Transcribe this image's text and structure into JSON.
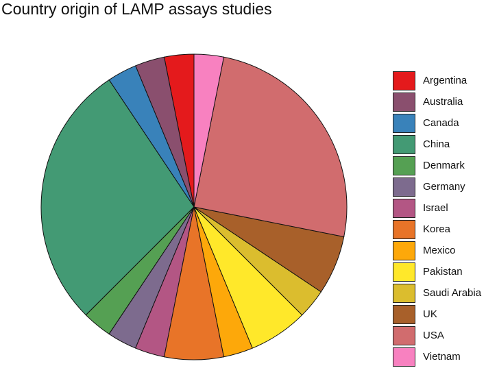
{
  "chart_data": {
    "type": "pie",
    "title": "Country origin of LAMP assays studies",
    "categories": [
      "Argentina",
      "Australia",
      "Canada",
      "China",
      "Denmark",
      "Germany",
      "Israel",
      "Korea",
      "Mexico",
      "Pakistan",
      "Saudi Arabia",
      "UK",
      "USA",
      "Vietnam"
    ],
    "values": [
      1,
      1,
      1,
      9,
      1,
      1,
      1,
      2,
      1,
      2,
      1,
      2,
      8,
      1
    ],
    "colors": [
      "#E41A1C",
      "#8A4F6E",
      "#3982BA",
      "#439A74",
      "#55A053",
      "#7D6B8E",
      "#B35684",
      "#E87428",
      "#FDA80A",
      "#FFE82A",
      "#DBBD2E",
      "#A8602A",
      "#D16C6E",
      "#F881C0"
    ],
    "legend": "right",
    "start": "top",
    "direction": "counterclockwise"
  }
}
